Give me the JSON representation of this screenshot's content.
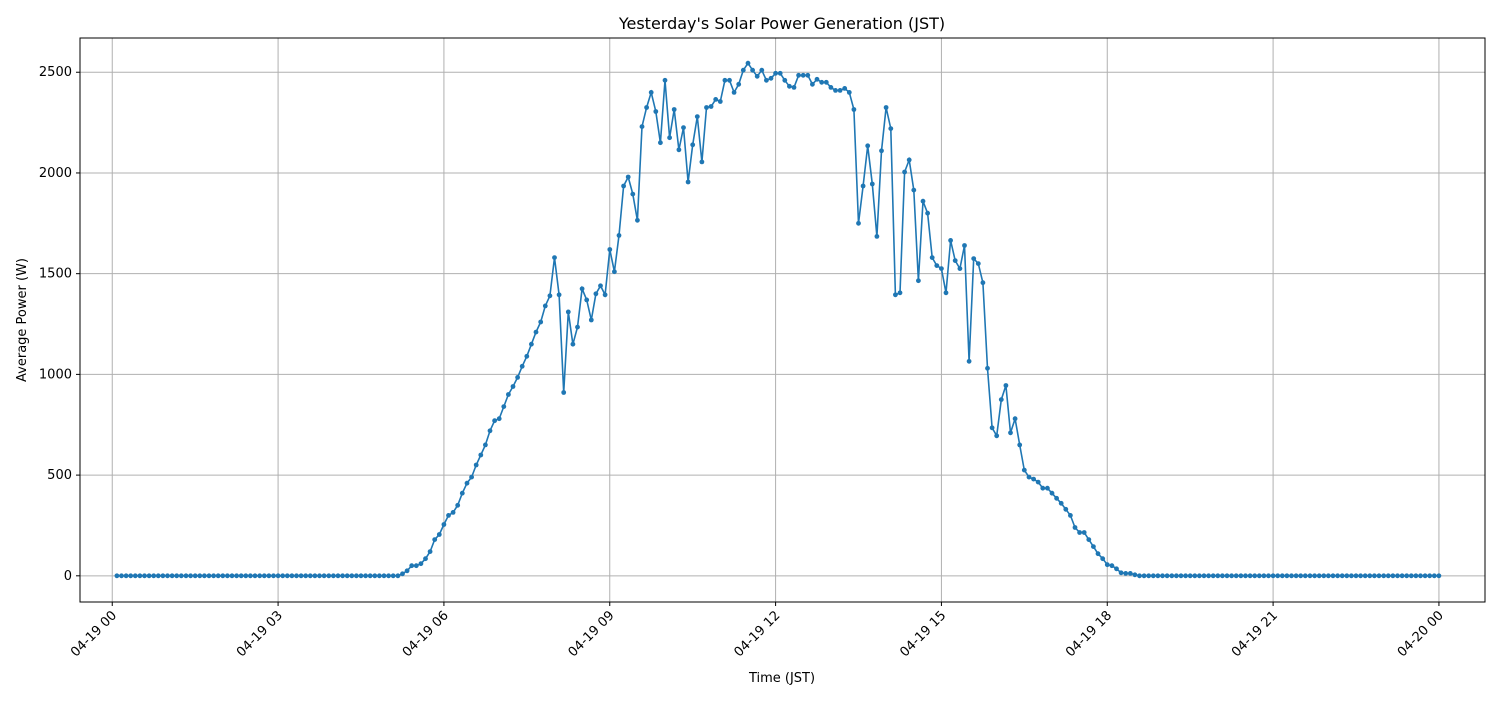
{
  "chart_data": {
    "type": "line",
    "title": "Yesterday's Solar Power Generation (JST)",
    "xlabel": "Time (JST)",
    "ylabel": "Average Power (W)",
    "date": "04-19",
    "xticks": [
      "04-19 00",
      "04-19 03",
      "04-19 06",
      "04-19 09",
      "04-19 12",
      "04-19 15",
      "04-19 18",
      "04-19 21",
      "04-20 00"
    ],
    "yticks": [
      0,
      500,
      1000,
      1500,
      2000,
      2500
    ],
    "ylim": [
      -130,
      2670
    ],
    "xlim": [
      "04-18 23:25",
      "04-20 00:50"
    ],
    "grid": true,
    "marker": "circle",
    "color": "#1f77b4",
    "x": [
      "00:05",
      "00:10",
      "00:15",
      "00:20",
      "00:25",
      "00:30",
      "00:35",
      "00:40",
      "00:45",
      "00:50",
      "00:55",
      "01:00",
      "01:05",
      "01:10",
      "01:15",
      "01:20",
      "01:25",
      "01:30",
      "01:35",
      "01:40",
      "01:45",
      "01:50",
      "01:55",
      "02:00",
      "02:05",
      "02:10",
      "02:15",
      "02:20",
      "02:25",
      "02:30",
      "02:35",
      "02:40",
      "02:45",
      "02:50",
      "02:55",
      "03:00",
      "03:05",
      "03:10",
      "03:15",
      "03:20",
      "03:25",
      "03:30",
      "03:35",
      "03:40",
      "03:45",
      "03:50",
      "03:55",
      "04:00",
      "04:05",
      "04:10",
      "04:15",
      "04:20",
      "04:25",
      "04:30",
      "04:35",
      "04:40",
      "04:45",
      "04:50",
      "04:55",
      "05:00",
      "05:05",
      "05:10",
      "05:15",
      "05:20",
      "05:25",
      "05:30",
      "05:35",
      "05:40",
      "05:45",
      "05:50",
      "05:55",
      "06:00",
      "06:05",
      "06:10",
      "06:15",
      "06:20",
      "06:25",
      "06:30",
      "06:35",
      "06:40",
      "06:45",
      "06:50",
      "06:55",
      "07:00",
      "07:05",
      "07:10",
      "07:15",
      "07:20",
      "07:25",
      "07:30",
      "07:35",
      "07:40",
      "07:45",
      "07:50",
      "07:55",
      "08:00",
      "08:05",
      "08:10",
      "08:15",
      "08:20",
      "08:25",
      "08:30",
      "08:35",
      "08:40",
      "08:45",
      "08:50",
      "08:55",
      "09:00",
      "09:05",
      "09:10",
      "09:15",
      "09:20",
      "09:25",
      "09:30",
      "09:35",
      "09:40",
      "09:45",
      "09:50",
      "09:55",
      "10:00",
      "10:05",
      "10:10",
      "10:15",
      "10:20",
      "10:25",
      "10:30",
      "10:35",
      "10:40",
      "10:45",
      "10:50",
      "10:55",
      "11:00",
      "11:05",
      "11:10",
      "11:15",
      "11:20",
      "11:25",
      "11:30",
      "11:35",
      "11:40",
      "11:45",
      "11:50",
      "11:55",
      "12:00",
      "12:05",
      "12:10",
      "12:15",
      "12:20",
      "12:25",
      "12:30",
      "12:35",
      "12:40",
      "12:45",
      "12:50",
      "12:55",
      "13:00",
      "13:05",
      "13:10",
      "13:15",
      "13:20",
      "13:25",
      "13:30",
      "13:35",
      "13:40",
      "13:45",
      "13:50",
      "13:55",
      "14:00",
      "14:05",
      "14:10",
      "14:15",
      "14:20",
      "14:25",
      "14:30",
      "14:35",
      "14:40",
      "14:45",
      "14:50",
      "14:55",
      "15:00",
      "15:05",
      "15:10",
      "15:15",
      "15:20",
      "15:25",
      "15:30",
      "15:35",
      "15:40",
      "15:45",
      "15:50",
      "15:55",
      "16:00",
      "16:05",
      "16:10",
      "16:15",
      "16:20",
      "16:25",
      "16:30",
      "16:35",
      "16:40",
      "16:45",
      "16:50",
      "16:55",
      "17:00",
      "17:05",
      "17:10",
      "17:15",
      "17:20",
      "17:25",
      "17:30",
      "17:35",
      "17:40",
      "17:45",
      "17:50",
      "17:55",
      "18:00",
      "18:05",
      "18:10",
      "18:15",
      "18:20",
      "18:25",
      "18:30",
      "18:35",
      "18:40",
      "18:45",
      "18:50",
      "18:55",
      "19:00",
      "19:05",
      "19:10",
      "19:15",
      "19:20",
      "19:25",
      "19:30",
      "19:35",
      "19:40",
      "19:45",
      "19:50",
      "19:55",
      "20:00",
      "20:05",
      "20:10",
      "20:15",
      "20:20",
      "20:25",
      "20:30",
      "20:35",
      "20:40",
      "20:45",
      "20:50",
      "20:55",
      "21:00",
      "21:05",
      "21:10",
      "21:15",
      "21:20",
      "21:25",
      "21:30",
      "21:35",
      "21:40",
      "21:45",
      "21:50",
      "21:55",
      "22:00",
      "22:05",
      "22:10",
      "22:15",
      "22:20",
      "22:25",
      "22:30",
      "22:35",
      "22:40",
      "22:45",
      "22:50",
      "22:55",
      "23:00",
      "23:05",
      "23:10",
      "23:15",
      "23:20",
      "23:25",
      "23:30",
      "23:35",
      "23:40",
      "23:45",
      "23:50",
      "23:55",
      "24:00"
    ],
    "values": [
      0,
      0,
      0,
      0,
      0,
      0,
      0,
      0,
      0,
      0,
      0,
      0,
      0,
      0,
      0,
      0,
      0,
      0,
      0,
      0,
      0,
      0,
      0,
      0,
      0,
      0,
      0,
      0,
      0,
      0,
      0,
      0,
      0,
      0,
      0,
      0,
      0,
      0,
      0,
      0,
      0,
      0,
      0,
      0,
      0,
      0,
      0,
      0,
      0,
      0,
      0,
      0,
      0,
      0,
      0,
      0,
      0,
      0,
      0,
      0,
      0,
      0,
      10,
      25,
      50,
      50,
      60,
      85,
      120,
      180,
      205,
      255,
      300,
      315,
      350,
      410,
      460,
      490,
      550,
      600,
      650,
      720,
      770,
      780,
      840,
      900,
      940,
      985,
      1040,
      1090,
      1150,
      1210,
      1260,
      1340,
      1390,
      1580,
      1395,
      910,
      1310,
      1150,
      1235,
      1425,
      1370,
      1270,
      1400,
      1440,
      1395,
      1620,
      1510,
      1690,
      1935,
      1980,
      1895,
      1765,
      2230,
      2325,
      2400,
      2305,
      2150,
      2460,
      2175,
      2315,
      2115,
      2225,
      1955,
      2140,
      2280,
      2055,
      2325,
      2330,
      2365,
      2355,
      2460,
      2460,
      2400,
      2440,
      2510,
      2545,
      2510,
      2480,
      2510,
      2460,
      2470,
      2495,
      2495,
      2460,
      2430,
      2425,
      2485,
      2485,
      2485,
      2440,
      2465,
      2450,
      2450,
      2425,
      2410,
      2410,
      2420,
      2400,
      2315,
      1750,
      1935,
      2135,
      1945,
      1685,
      2110,
      2325,
      2220,
      1395,
      1405,
      2005,
      2065,
      1915,
      1465,
      1860,
      1800,
      1580,
      1540,
      1525,
      1405,
      1665,
      1565,
      1525,
      1640,
      1065,
      1575,
      1550,
      1455,
      1030,
      735,
      695,
      875,
      945,
      710,
      780,
      650,
      525,
      490,
      480,
      465,
      435,
      435,
      410,
      385,
      360,
      330,
      300,
      240,
      215,
      215,
      180,
      145,
      110,
      85,
      55,
      50,
      35,
      15,
      12,
      12,
      5,
      0,
      0,
      0,
      0,
      0,
      0,
      0,
      0,
      0,
      0,
      0,
      0,
      0,
      0,
      0,
      0,
      0,
      0,
      0,
      0,
      0,
      0,
      0,
      0,
      0,
      0,
      0,
      0,
      0,
      0,
      0,
      0,
      0,
      0,
      0,
      0,
      0,
      0,
      0,
      0,
      0,
      0,
      0,
      0,
      0,
      0,
      0,
      0,
      0,
      0,
      0,
      0,
      0,
      0,
      0,
      0,
      0,
      0,
      0,
      0,
      0,
      0,
      0,
      0,
      0,
      0
    ]
  }
}
